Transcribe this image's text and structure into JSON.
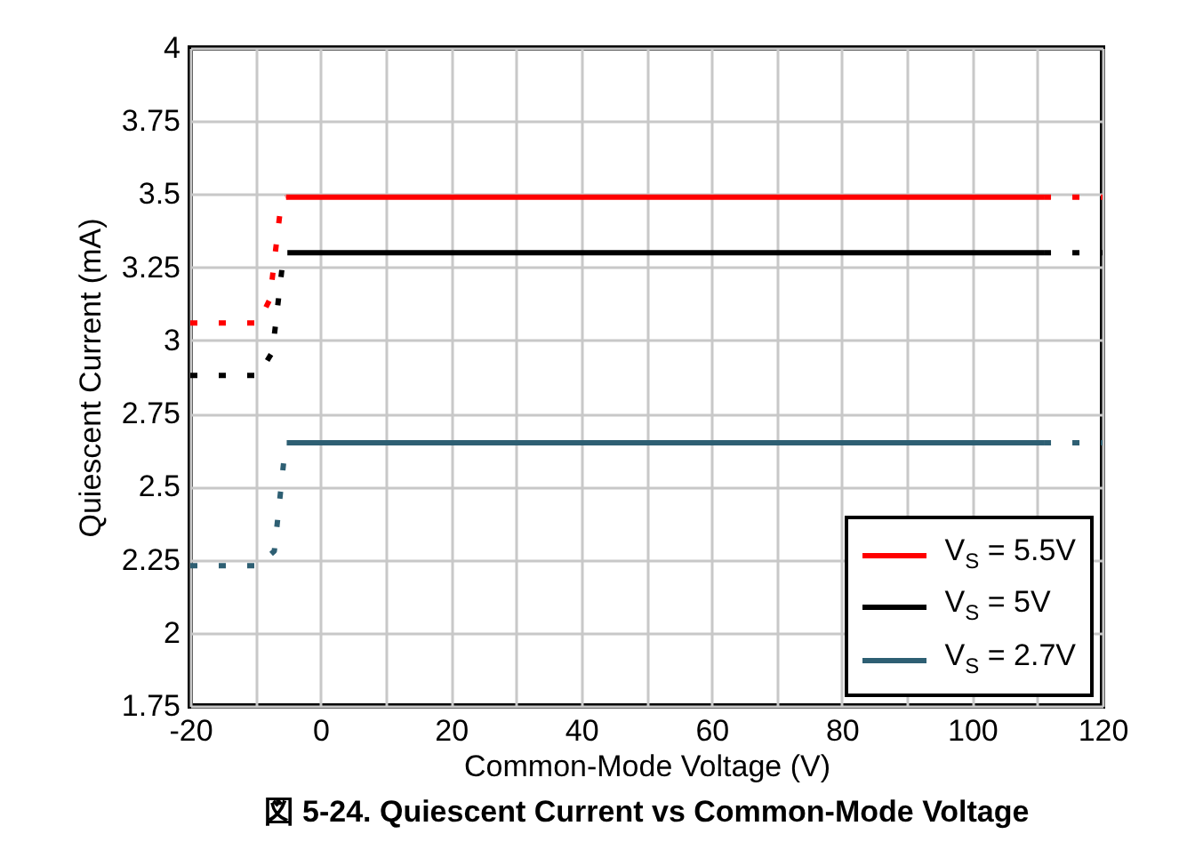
{
  "chart_data": {
    "type": "line",
    "title": "図 5-24. Quiescent Current vs Common-Mode Voltage",
    "xlabel": "Common-Mode Voltage (V)",
    "ylabel": "Quiescent Current (mA)",
    "xlim": [
      -20,
      120
    ],
    "xticks": [
      -20,
      {
        "value": -10,
        "label": null
      },
      0,
      {
        "value": 10,
        "label": null
      },
      20,
      {
        "value": 30,
        "label": null
      },
      40,
      {
        "value": 50,
        "label": null
      },
      60,
      {
        "value": 70,
        "label": null
      },
      80,
      {
        "value": 90,
        "label": null
      },
      100,
      {
        "value": 110,
        "label": null
      },
      120
    ],
    "ylim": [
      1.75,
      4
    ],
    "yticks": [
      1.75,
      2,
      2.25,
      2.5,
      2.75,
      3,
      3.25,
      3.5,
      3.75,
      4
    ],
    "grid": true,
    "legend": "bottom right",
    "series": [
      {
        "name": "V$_{S}$ = 5.5V",
        "color": "#ff0000",
        "line_style": "solid",
        "x": [
          -5.3,
          111
        ],
        "values": [
          3.49,
          3.49
        ]
      },
      {
        "name": "V$_{S}$ = 5V",
        "color": "#000000",
        "line_style": "solid",
        "x": [
          -5.1,
          111
        ],
        "values": [
          3.3,
          3.3
        ]
      },
      {
        "name": "V$_{S}$ = 2.7V",
        "color": "#2e5f73",
        "line_style": "solid",
        "x": [
          -5.2,
          111
        ],
        "values": [
          2.65,
          2.65
        ]
      },
      {
        "color": "#ff0000",
        "line_style": "dotted",
        "x": [
          -20,
          -9.6,
          -7.8,
          -6,
          -5.3
        ],
        "values": [
          3.06,
          3.06,
          3.14,
          3.48,
          3.49
        ]
      },
      {
        "color": "#000000",
        "line_style": "dotted",
        "x": [
          -20,
          -9.6,
          -7.4,
          -5.8,
          -5.1
        ],
        "values": [
          2.88,
          2.88,
          2.96,
          3.27,
          3.3
        ]
      },
      {
        "color": "#2e5f73",
        "line_style": "dotted",
        "x": [
          -20,
          -9.6,
          -7.1,
          -5.4,
          -5.2
        ],
        "values": [
          2.23,
          2.23,
          2.28,
          2.64,
          2.65
        ]
      },
      {
        "color": "#ff0000",
        "line_style": "dotted",
        "x": [
          111,
          120
        ],
        "values": [
          3.49,
          3.49
        ]
      },
      {
        "color": "#000000",
        "line_style": "dotted",
        "x": [
          111,
          120
        ],
        "values": [
          3.3,
          3.3
        ]
      },
      {
        "color": "#2e5f73",
        "line_style": "dotted",
        "x": [
          111,
          120
        ],
        "values": [
          2.65,
          2.65
        ]
      }
    ]
  }
}
